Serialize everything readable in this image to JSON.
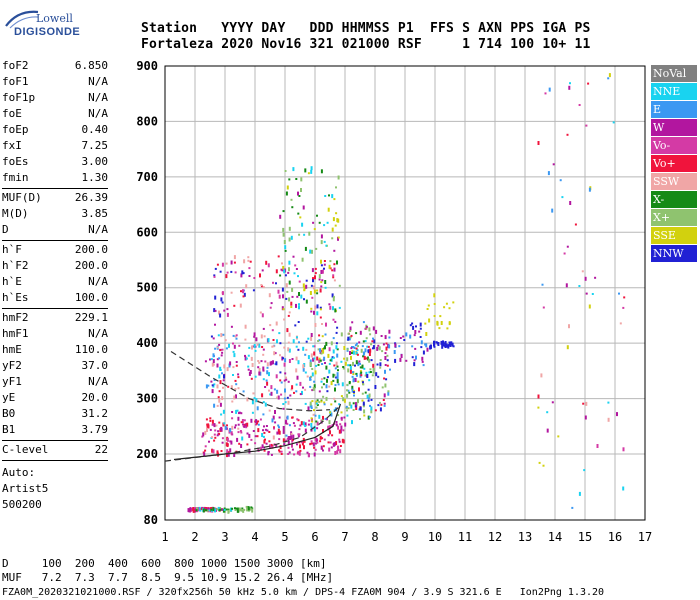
{
  "logo": {
    "line1": "Lowell",
    "line2": "DIGISONDE"
  },
  "header": {
    "row1": "Station   YYYY DAY   DDD HHMMSS P1  FFS S AXN PPS IGA PS",
    "row2": "Fortaleza 2020 Nov16 321 021000 RSF     1 714 100 10+ 11"
  },
  "params": [
    {
      "k": "foF2",
      "v": "6.850"
    },
    {
      "k": "foF1",
      "v": "N/A"
    },
    {
      "k": "foF1p",
      "v": "N/A"
    },
    {
      "k": "foE",
      "v": "N/A"
    },
    {
      "k": "foEp",
      "v": "0.40"
    },
    {
      "k": "fxI",
      "v": "7.25"
    },
    {
      "k": "foEs",
      "v": "3.00"
    },
    {
      "k": "fmin",
      "v": "1.30"
    },
    {
      "k": "MUF(D)",
      "v": "26.39",
      "sep": true
    },
    {
      "k": "M(D)",
      "v": "3.85"
    },
    {
      "k": "D",
      "v": "N/A"
    },
    {
      "k": "h`F",
      "v": "200.0",
      "sep": true
    },
    {
      "k": "h`F2",
      "v": "200.0"
    },
    {
      "k": "h`E",
      "v": "N/A"
    },
    {
      "k": "h`Es",
      "v": "100.0"
    },
    {
      "k": "hmF2",
      "v": "229.1",
      "sep": true
    },
    {
      "k": "hmF1",
      "v": "N/A"
    },
    {
      "k": "hmE",
      "v": "110.0"
    },
    {
      "k": "yF2",
      "v": "37.0"
    },
    {
      "k": "yF1",
      "v": "N/A"
    },
    {
      "k": "yE",
      "v": "20.0"
    },
    {
      "k": "B0",
      "v": "31.2"
    },
    {
      "k": "B1",
      "v": "3.79"
    },
    {
      "k": "C-level",
      "v": "22",
      "sep": true
    }
  ],
  "auto": [
    "Auto:",
    "Artist5",
    "500200"
  ],
  "legend": [
    {
      "label": "NoVal",
      "color": "#808080"
    },
    {
      "label": "NNE",
      "color": "#19d3f0"
    },
    {
      "label": "E",
      "color": "#3b98f2"
    },
    {
      "label": "W",
      "color": "#b2169f"
    },
    {
      "label": "Vo-",
      "color": "#d43aa5"
    },
    {
      "label": "Vo+",
      "color": "#f0143c"
    },
    {
      "label": "SSW",
      "color": "#f0a6a6"
    },
    {
      "label": "X-",
      "color": "#158a16"
    },
    {
      "label": "X+",
      "color": "#8fc36f"
    },
    {
      "label": "SSE",
      "color": "#d2d10e"
    },
    {
      "label": "NNW",
      "color": "#2121d4"
    }
  ],
  "footer": {
    "line1": "D     100  200  400  600  800 1000 1500 3000 [km]",
    "line2": "MUF   7.2  7.3  7.7  8.5  9.5 10.9 15.2 26.4 [MHz]",
    "line3": "FZA0M_2020321021000.RSF / 320fx256h 50 kHz 5.0 km / DPS-4 FZA0M 904 / 3.9 S 321.6 E   Ion2Png 1.3.20"
  },
  "chart_data": {
    "type": "scatter",
    "xlim": [
      1,
      17
    ],
    "ylim": [
      80,
      900
    ],
    "x_ticks": [
      1,
      2,
      3,
      4,
      5,
      6,
      7,
      8,
      9,
      10,
      11,
      12,
      13,
      14,
      15,
      16,
      17
    ],
    "y_ticks": [
      80,
      200,
      300,
      400,
      500,
      600,
      700,
      800,
      900
    ],
    "grid": true,
    "legend_position": "right",
    "clusters": [
      {
        "x": [
          1.7,
          2.9
        ],
        "y": [
          100,
          104
        ],
        "series": [
          "Vo+",
          "W",
          "Vo-"
        ],
        "n": 70
      },
      {
        "x": [
          2.0,
          3.2
        ],
        "y": [
          98,
          104
        ],
        "series": [
          "X-",
          "X+",
          "NNE"
        ],
        "n": 30
      },
      {
        "x": [
          3.2,
          3.9
        ],
        "y": [
          100,
          106
        ],
        "series": [
          "X-",
          "X+"
        ],
        "n": 25
      },
      {
        "x": [
          2.2,
          7.0
        ],
        "y": [
          200,
          270
        ],
        "series": [
          "Vo+",
          "Vo-",
          "W"
        ],
        "n": 260
      },
      {
        "x": [
          2.3,
          6.0
        ],
        "y": [
          230,
          420
        ],
        "series": [
          "NNE",
          "E",
          "SSW",
          "W"
        ],
        "n": 220
      },
      {
        "x": [
          2.5,
          6.8
        ],
        "y": [
          300,
          560
        ],
        "series": [
          "Vo-",
          "W",
          "SSW",
          "Vo+",
          "NNW"
        ],
        "n": 220
      },
      {
        "x": [
          4.8,
          6.8
        ],
        "y": [
          450,
          720
        ],
        "series": [
          "X-",
          "X+",
          "SSE",
          "W",
          "NNE"
        ],
        "n": 120
      },
      {
        "x": [
          5.8,
          7.9
        ],
        "y": [
          260,
          420
        ],
        "series": [
          "X-",
          "X+",
          "SSE",
          "NNE",
          "E"
        ],
        "n": 200
      },
      {
        "x": [
          7.0,
          8.5
        ],
        "y": [
          280,
          440
        ],
        "series": [
          "W",
          "Vo+",
          "NNW",
          "E",
          "X+"
        ],
        "n": 120
      },
      {
        "x": [
          8.6,
          9.8
        ],
        "y": [
          360,
          440
        ],
        "series": [
          "NNW",
          "W",
          "E"
        ],
        "n": 40
      },
      {
        "x": [
          9.8,
          10.6
        ],
        "y": [
          395,
          405
        ],
        "series": [
          "NNW"
        ],
        "n": 30
      },
      {
        "x": [
          9.6,
          10.6
        ],
        "y": [
          420,
          490
        ],
        "series": [
          "SSE"
        ],
        "n": 20
      },
      {
        "x": [
          13.4,
          16.3
        ],
        "y": [
          100,
          900
        ],
        "series": [
          "W",
          "Vo+",
          "NNE",
          "E",
          "SSE",
          "SSW",
          "Vo-"
        ],
        "n": 60
      }
    ],
    "traces": [
      {
        "name": "O-trace",
        "style": "solid",
        "points": [
          [
            1.3,
            190
          ],
          [
            3.0,
            200
          ],
          [
            4.0,
            205
          ],
          [
            5.0,
            215
          ],
          [
            6.0,
            230
          ],
          [
            6.6,
            250
          ],
          [
            6.85,
            290
          ]
        ]
      },
      {
        "name": "profile",
        "style": "dashed",
        "points": [
          [
            1.0,
            187
          ],
          [
            3.0,
            200
          ],
          [
            4.5,
            214
          ],
          [
            5.5,
            230
          ],
          [
            6.3,
            260
          ],
          [
            6.8,
            285
          ]
        ]
      },
      {
        "name": "profile-upper",
        "style": "dashed",
        "points": [
          [
            1.2,
            385
          ],
          [
            2.5,
            340
          ],
          [
            3.8,
            300
          ],
          [
            4.8,
            282
          ],
          [
            5.8,
            278
          ],
          [
            6.5,
            280
          ]
        ]
      }
    ]
  }
}
